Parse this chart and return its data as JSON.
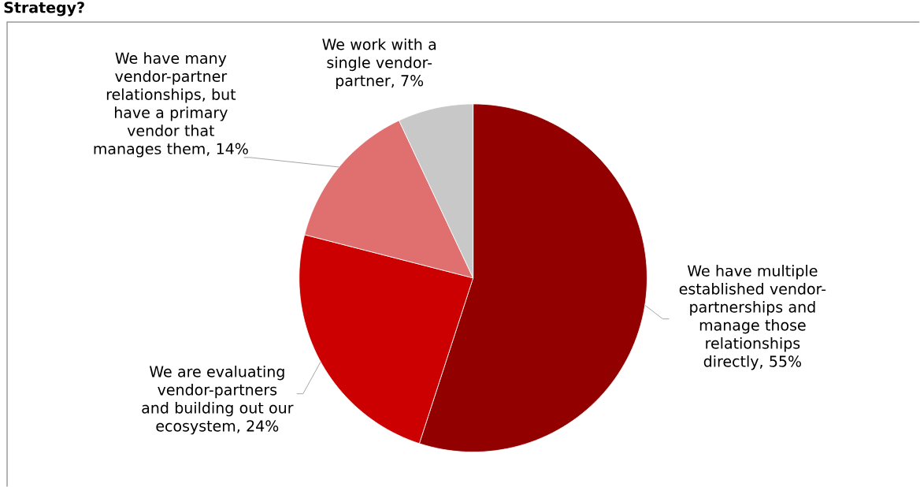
{
  "chart_data": {
    "type": "pie",
    "title": "Strategy?",
    "categories": [
      "We have multiple established vendor-partnerships and manage those relationships directly",
      "We are evaluating vendor-partners and building out our ecosystem",
      "We have many vendor-partner relationships, but have a primary vendor that manages them",
      "We work with a single vendor-partner"
    ],
    "values": [
      55,
      24,
      14,
      7
    ],
    "value_labels": [
      ", 55%",
      ", 24%",
      ", 14%",
      ", 7%"
    ],
    "colors": [
      "#920000",
      "#cc0000",
      "#e07070",
      "#c8c8c8"
    ],
    "legend": false
  }
}
